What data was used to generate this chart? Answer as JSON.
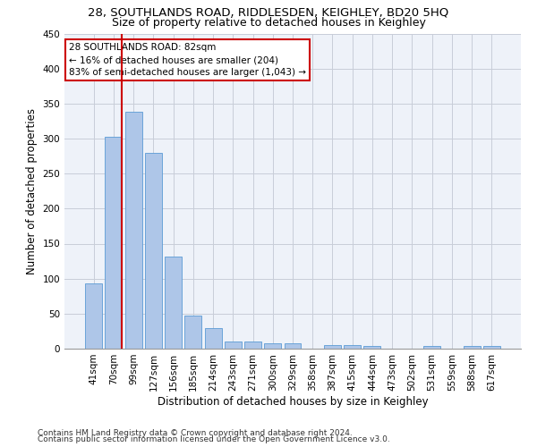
{
  "title": "28, SOUTHLANDS ROAD, RIDDLESDEN, KEIGHLEY, BD20 5HQ",
  "subtitle": "Size of property relative to detached houses in Keighley",
  "xlabel": "Distribution of detached houses by size in Keighley",
  "ylabel": "Number of detached properties",
  "categories": [
    "41sqm",
    "70sqm",
    "99sqm",
    "127sqm",
    "156sqm",
    "185sqm",
    "214sqm",
    "243sqm",
    "271sqm",
    "300sqm",
    "329sqm",
    "358sqm",
    "387sqm",
    "415sqm",
    "444sqm",
    "473sqm",
    "502sqm",
    "531sqm",
    "559sqm",
    "588sqm",
    "617sqm"
  ],
  "values": [
    93,
    303,
    338,
    280,
    131,
    47,
    30,
    10,
    10,
    8,
    8,
    0,
    5,
    5,
    4,
    0,
    0,
    4,
    0,
    4,
    4
  ],
  "bar_color": "#aec6e8",
  "bar_edge_color": "#5b9bd5",
  "annotation_title": "28 SOUTHLANDS ROAD: 82sqm",
  "annotation_line1": "← 16% of detached houses are smaller (204)",
  "annotation_line2": "83% of semi-detached houses are larger (1,043) →",
  "annotation_box_color": "#ffffff",
  "annotation_box_edge": "#cc0000",
  "vline_color": "#cc0000",
  "vline_x": 1.43,
  "footer1": "Contains HM Land Registry data © Crown copyright and database right 2024.",
  "footer2": "Contains public sector information licensed under the Open Government Licence v3.0.",
  "ylim": [
    0,
    450
  ],
  "yticks": [
    0,
    50,
    100,
    150,
    200,
    250,
    300,
    350,
    400,
    450
  ],
  "title_fontsize": 9.5,
  "subtitle_fontsize": 9,
  "ylabel_fontsize": 8.5,
  "xlabel_fontsize": 8.5,
  "tick_fontsize": 7.5,
  "annot_fontsize": 7.5,
  "footer_fontsize": 6.5,
  "background_color": "#ffffff",
  "plot_bg_color": "#eef2f9",
  "grid_color": "#c8cdd8"
}
